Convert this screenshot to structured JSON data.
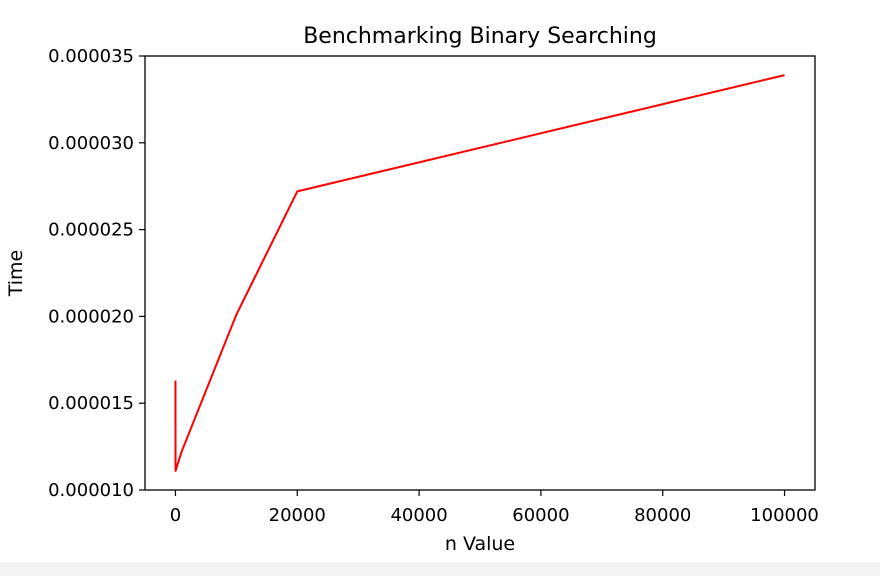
{
  "chart_data": {
    "type": "line",
    "title": "Benchmarking Binary Searching",
    "xlabel": "n Value",
    "ylabel": "Time",
    "xlim": [
      -5000,
      105000
    ],
    "ylim": [
      1e-05,
      3.5e-05
    ],
    "x_ticks": [
      0,
      20000,
      40000,
      60000,
      80000,
      100000
    ],
    "x_tick_labels": [
      "0",
      "20000",
      "40000",
      "60000",
      "80000",
      "100000"
    ],
    "y_ticks": [
      1e-05,
      1.5e-05,
      2e-05,
      2.5e-05,
      3e-05,
      3.5e-05
    ],
    "y_tick_labels": [
      "0.000010",
      "0.000015",
      "0.000020",
      "0.000025",
      "0.000030",
      "0.000035"
    ],
    "grid": false,
    "series": [
      {
        "color": "#ff0000",
        "x": [
          1,
          10,
          100,
          1000,
          10000,
          20000,
          100000
        ],
        "y": [
          1.63e-05,
          1.11e-05,
          1.12e-05,
          1.22e-05,
          2.01e-05,
          2.72e-05,
          3.39e-05
        ]
      }
    ]
  }
}
